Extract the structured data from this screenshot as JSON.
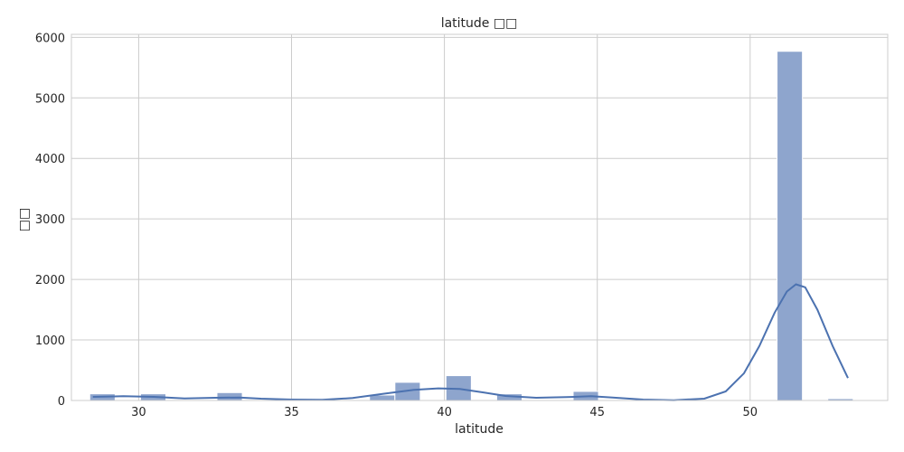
{
  "chart_data": {
    "type": "bar",
    "title": "latitude □□",
    "xlabel": "latitude",
    "ylabel": "□□",
    "xlim": [
      27.8,
      54.5
    ],
    "ylim": [
      0,
      6050
    ],
    "xticks": [
      30,
      35,
      40,
      45,
      50
    ],
    "yticks": [
      0,
      1000,
      2000,
      3000,
      4000,
      5000,
      6000
    ],
    "grid": true,
    "bin_width": 0.83,
    "bars": [
      {
        "x0": 28.4,
        "value": 110
      },
      {
        "x0": 30.06,
        "value": 110
      },
      {
        "x0": 32.56,
        "value": 130
      },
      {
        "x0": 37.55,
        "value": 90
      },
      {
        "x0": 38.38,
        "value": 300
      },
      {
        "x0": 40.05,
        "value": 410
      },
      {
        "x0": 41.71,
        "value": 110
      },
      {
        "x0": 44.21,
        "value": 150
      },
      {
        "x0": 50.88,
        "value": 5770
      },
      {
        "x0": 52.54,
        "value": 30
      }
    ],
    "kde": {
      "name": "",
      "color": "#4c72b0",
      "points": [
        [
          28.5,
          60
        ],
        [
          29.5,
          70
        ],
        [
          30.5,
          60
        ],
        [
          31.5,
          35
        ],
        [
          32.5,
          45
        ],
        [
          33.3,
          50
        ],
        [
          34.0,
          30
        ],
        [
          35.0,
          15
        ],
        [
          36.0,
          10
        ],
        [
          37.0,
          40
        ],
        [
          38.0,
          110
        ],
        [
          39.0,
          175
        ],
        [
          39.8,
          200
        ],
        [
          40.5,
          190
        ],
        [
          41.3,
          130
        ],
        [
          42.0,
          75
        ],
        [
          43.0,
          45
        ],
        [
          44.0,
          55
        ],
        [
          44.8,
          70
        ],
        [
          45.5,
          50
        ],
        [
          46.5,
          15
        ],
        [
          47.5,
          5
        ],
        [
          48.5,
          30
        ],
        [
          49.2,
          150
        ],
        [
          49.8,
          450
        ],
        [
          50.3,
          900
        ],
        [
          50.8,
          1450
        ],
        [
          51.2,
          1800
        ],
        [
          51.5,
          1920
        ],
        [
          51.8,
          1870
        ],
        [
          52.2,
          1500
        ],
        [
          52.7,
          900
        ],
        [
          53.2,
          370
        ]
      ]
    },
    "bar_color": "#8ea5cd"
  }
}
